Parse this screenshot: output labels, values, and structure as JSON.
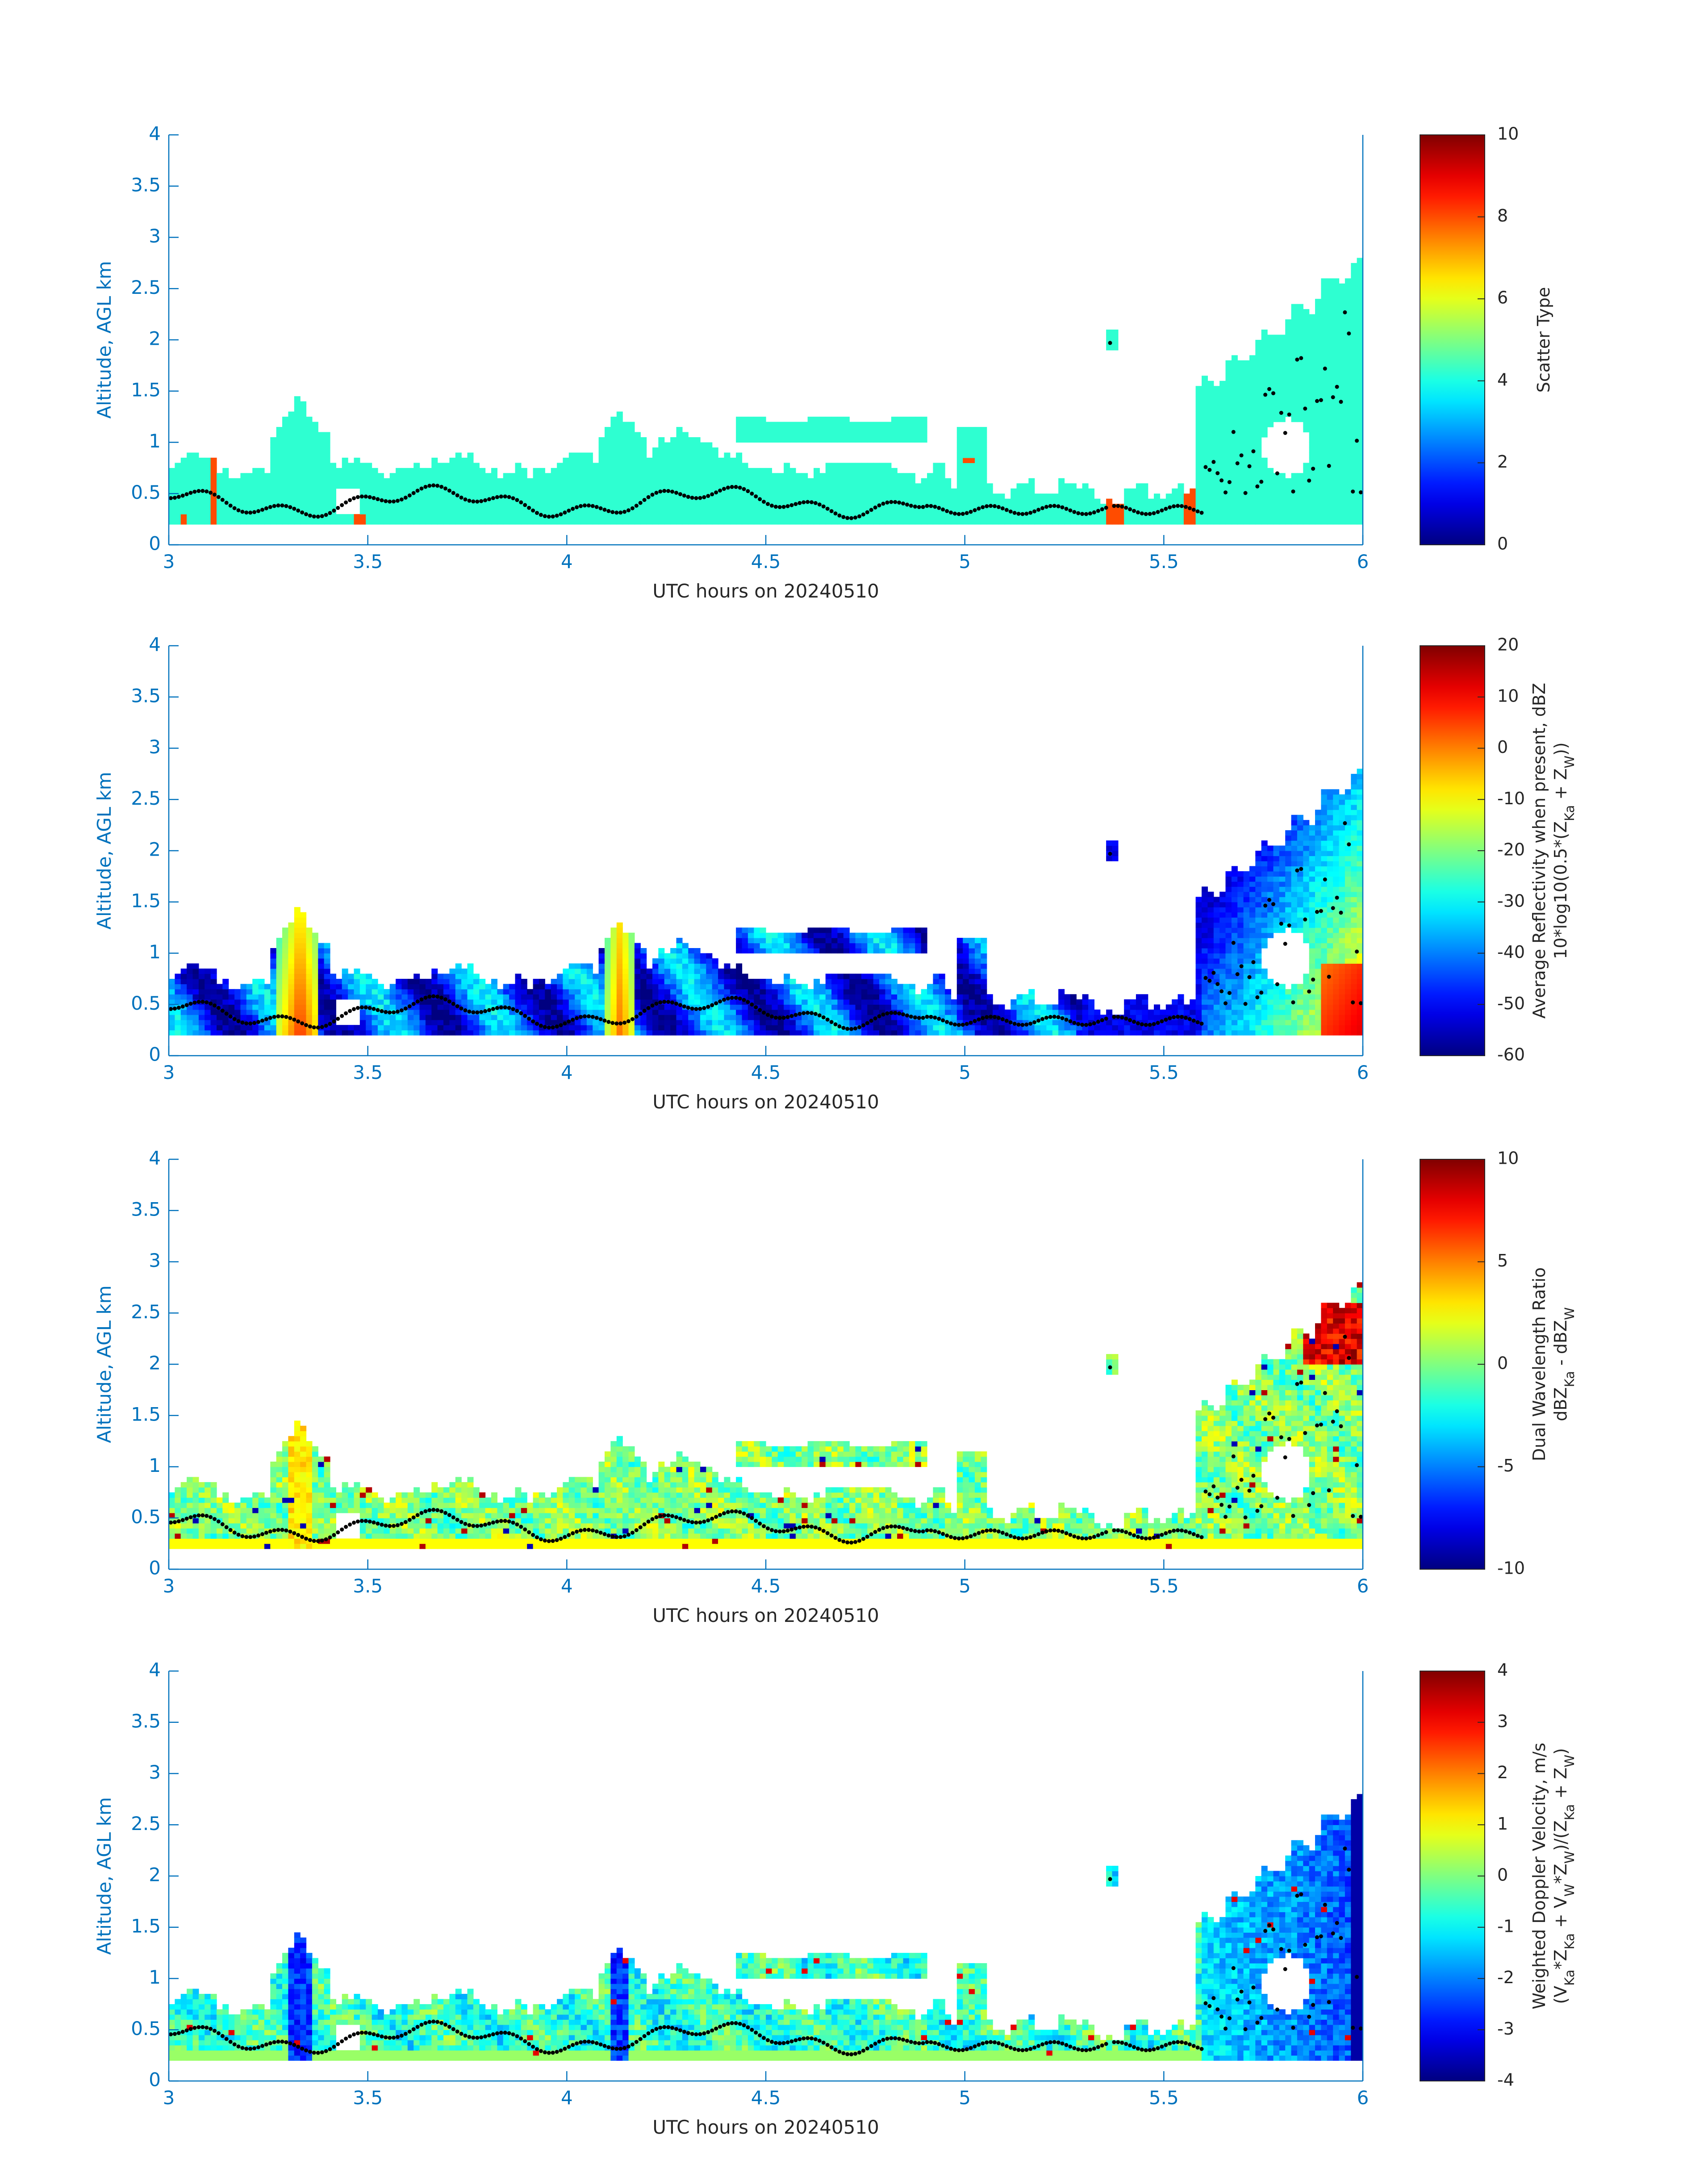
{
  "figure": {
    "colors": {
      "axis": "#0072BD",
      "text": "#262626",
      "background": "#ffffff",
      "data_dots": "#000000"
    },
    "colormap": "jet"
  },
  "chart_data": [
    {
      "type": "heatmap",
      "title": "",
      "xlabel": "UTC hours on 20240510",
      "ylabel": "Altitude, AGL km",
      "xlim": [
        3,
        6
      ],
      "ylim": [
        0,
        4
      ],
      "xticks": [
        "3",
        "3.5",
        "4",
        "4.5",
        "5",
        "5.5",
        "6"
      ],
      "yticks": [
        "0",
        "0.5",
        "1",
        "1.5",
        "2",
        "2.5",
        "3",
        "3.5",
        "4"
      ],
      "colorbar": {
        "range": [
          0,
          10
        ],
        "ticks": [
          "0",
          "2",
          "4",
          "6",
          "8",
          "10"
        ],
        "label_lines": [
          "Scatter Type"
        ]
      },
      "features": "Mostly uniform cyan values (about 4) from 0.2 to ~0.8 km; red-orange (about 8) columns near 3.1, 5.35 and 5.57 h; cloud rises to ~2.8 km after 5.6 h"
    },
    {
      "type": "heatmap",
      "title": "",
      "xlabel": "UTC hours on 20240510",
      "ylabel": "Altitude, AGL km",
      "xlim": [
        3,
        6
      ],
      "ylim": [
        0,
        4
      ],
      "xticks": [
        "3",
        "3.5",
        "4",
        "4.5",
        "5",
        "5.5",
        "6"
      ],
      "yticks": [
        "0",
        "0.5",
        "1",
        "1.5",
        "2",
        "2.5",
        "3",
        "3.5",
        "4"
      ],
      "colorbar": {
        "range": [
          -60,
          20
        ],
        "ticks": [
          "-60",
          "-50",
          "-40",
          "-30",
          "-20",
          "-10",
          "0",
          "10",
          "20"
        ],
        "label_lines": [
          "Average Reflectivity when present, dBZ",
          "10*log10(0.5*(Z",
          "Ka",
          " + Z",
          "W",
          "))"
        ]
      },
      "features": "Low layer mostly -50 to -30 dBZ; orange-red columns near 3.3 and 4.15 h; strong echoes up to +20 dBZ near surface at 5.9-6 h"
    },
    {
      "type": "heatmap",
      "title": "",
      "xlabel": "UTC hours on 20240510",
      "ylabel": "Altitude, AGL km",
      "xlim": [
        3,
        6
      ],
      "ylim": [
        0,
        4
      ],
      "xticks": [
        "3",
        "3.5",
        "4",
        "4.5",
        "5",
        "5.5",
        "6"
      ],
      "yticks": [
        "0",
        "0.5",
        "1",
        "1.5",
        "2",
        "2.5",
        "3",
        "3.5",
        "4"
      ],
      "colorbar": {
        "range": [
          -10,
          10
        ],
        "ticks": [
          "-10",
          "-5",
          "0",
          "5",
          "10"
        ],
        "label_lines": [
          "Dual Wavelength Ratio",
          "dBZ",
          "Ka",
          " - dBZ",
          "W"
        ]
      },
      "features": "Mostly near 0 dB (green); yellow column near 3.33 h; red values near 2.2-2.6 km around 5.9 h"
    },
    {
      "type": "heatmap",
      "title": "",
      "xlabel": "UTC hours on 20240510",
      "ylabel": "Altitude, AGL km",
      "xlim": [
        3,
        6
      ],
      "ylim": [
        0,
        4
      ],
      "xticks": [
        "3",
        "3.5",
        "4",
        "4.5",
        "5",
        "5.5",
        "6"
      ],
      "yticks": [
        "0",
        "0.5",
        "1",
        "1.5",
        "2",
        "2.5",
        "3",
        "3.5",
        "4"
      ],
      "colorbar": {
        "range": [
          -4,
          4
        ],
        "ticks": [
          "-4",
          "-3",
          "-2",
          "-1",
          "0",
          "1",
          "2",
          "3",
          "4"
        ],
        "label_lines": [
          "Weighted Doppler Velocity, m/s",
          "(V",
          "Ka",
          "*Z",
          "Ka",
          " + V",
          "W",
          "*Z",
          "W",
          ")/(Z",
          "Ka",
          " + Z",
          "W",
          ")"
        ]
      },
      "features": "Mostly -1 to 0 m/s; downward -3 m/s columns near 3.33 and 4.13 h; strongest -4 m/s near surface at 6 h"
    }
  ]
}
